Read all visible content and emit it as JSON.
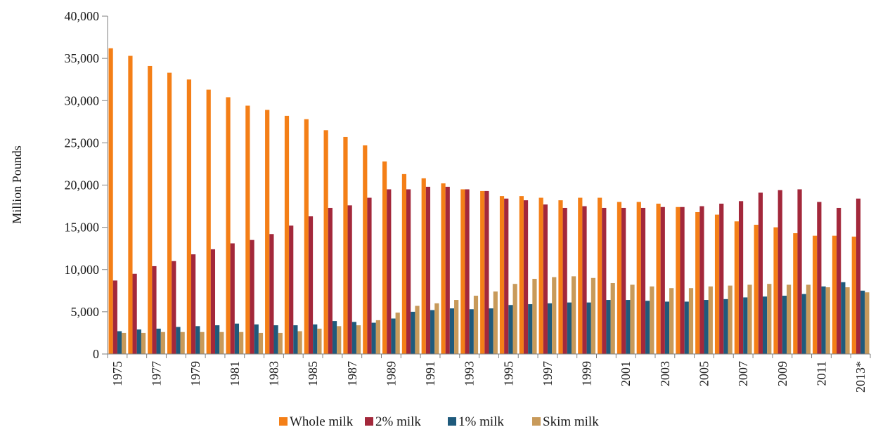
{
  "chart_data": {
    "type": "bar",
    "title": "",
    "xlabel": "",
    "ylabel": "Million Pounds",
    "ylim": [
      0,
      40000
    ],
    "yticks": [
      0,
      5000,
      10000,
      15000,
      20000,
      25000,
      30000,
      35000,
      40000
    ],
    "ytick_labels": [
      "0",
      "5,000",
      "10,000",
      "15,000",
      "20,000",
      "25,000",
      "30,000",
      "35,000",
      "40,000"
    ],
    "grid": false,
    "legend_position": "bottom",
    "categories": [
      "1975",
      "1976",
      "1977",
      "1978",
      "1979",
      "1980",
      "1981",
      "1982",
      "1983",
      "1984",
      "1985",
      "1986",
      "1987",
      "1988",
      "1989",
      "1990",
      "1991",
      "1992",
      "1993",
      "1994",
      "1995",
      "1996",
      "1997",
      "1998",
      "1999",
      "2000",
      "2001",
      "2002",
      "2003",
      "2004",
      "2005",
      "2006",
      "2007",
      "2008",
      "2009",
      "2010",
      "2011",
      "2012",
      "2013*"
    ],
    "xtick_labels": [
      "1975",
      "",
      "1977",
      "",
      "1979",
      "",
      "1981",
      "",
      "1983",
      "",
      "1985",
      "",
      "1987",
      "",
      "1989",
      "",
      "1991",
      "",
      "1993",
      "",
      "1995",
      "",
      "1997",
      "",
      "1999",
      "",
      "2001",
      "",
      "2003",
      "",
      "2005",
      "",
      "2007",
      "",
      "2009",
      "",
      "2011",
      "",
      "2013*"
    ],
    "series": [
      {
        "name": "Whole milk",
        "color": "#f47f17",
        "values": [
          36200,
          35300,
          34100,
          33300,
          32500,
          31300,
          30400,
          29400,
          28900,
          28200,
          27800,
          26500,
          25700,
          24700,
          22800,
          21300,
          20800,
          20200,
          19500,
          19300,
          18700,
          18700,
          18500,
          18200,
          18500,
          18500,
          18000,
          18000,
          17800,
          17400,
          16800,
          16500,
          15700,
          15300,
          15000,
          14300,
          14000,
          14000,
          13900
        ]
      },
      {
        "name": "2% milk",
        "color": "#a3283b",
        "values": [
          8700,
          9500,
          10400,
          11000,
          11800,
          12400,
          13100,
          13500,
          14200,
          15200,
          16300,
          17300,
          17600,
          18500,
          19500,
          19500,
          19800,
          19800,
          19500,
          19300,
          18400,
          18200,
          17700,
          17300,
          17500,
          17300,
          17300,
          17300,
          17400,
          17400,
          17500,
          17800,
          18100,
          19100,
          19400,
          19500,
          18000,
          17300,
          18400
        ]
      },
      {
        "name": "1% milk",
        "color": "#1f5a7c",
        "values": [
          2700,
          2900,
          3000,
          3200,
          3300,
          3400,
          3600,
          3500,
          3400,
          3400,
          3500,
          3900,
          3800,
          3700,
          4200,
          5000,
          5200,
          5400,
          5300,
          5400,
          5800,
          5900,
          6000,
          6100,
          6100,
          6400,
          6400,
          6300,
          6200,
          6200,
          6400,
          6500,
          6700,
          6800,
          6900,
          7100,
          8000,
          8500,
          7500
        ]
      },
      {
        "name": "Skim milk",
        "color": "#c89a5a",
        "values": [
          2500,
          2500,
          2600,
          2600,
          2600,
          2600,
          2600,
          2500,
          2500,
          2700,
          3000,
          3300,
          3400,
          4000,
          4900,
          5700,
          6000,
          6400,
          6900,
          7400,
          8300,
          8900,
          9100,
          9200,
          9000,
          8400,
          8200,
          8000,
          7800,
          7800,
          8000,
          8100,
          8200,
          8300,
          8200,
          8200,
          7900,
          7900,
          7300
        ]
      }
    ]
  }
}
